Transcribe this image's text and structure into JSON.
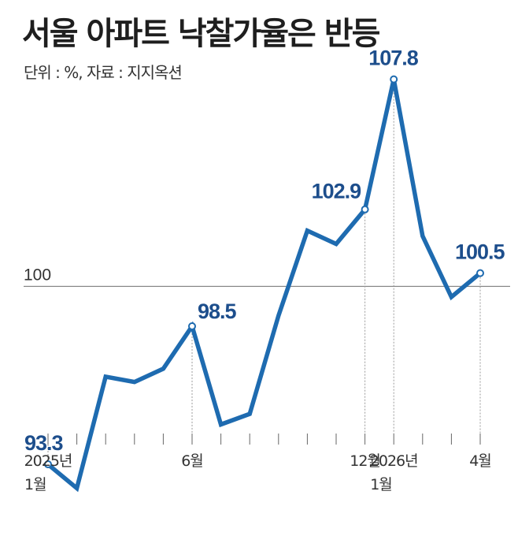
{
  "title": "서울 아파트 낙찰가율은 반등",
  "subtitle": "단위 : %, 자료 : 지지옥션",
  "colors": {
    "line": "#1e6bb0",
    "label": "#1d4e8c",
    "reference": "#888888",
    "text": "#333333"
  },
  "chart_data": {
    "type": "line",
    "months": [
      "2025-01",
      "2025-02",
      "2025-03",
      "2025-04",
      "2025-05",
      "2025-06",
      "2025-07",
      "2025-08",
      "2025-09",
      "2025-10",
      "2025-11",
      "2025-12",
      "2026-01",
      "2026-02",
      "2026-03",
      "2026-04"
    ],
    "values": [
      93.3,
      92.4,
      96.6,
      96.4,
      96.9,
      98.5,
      94.8,
      95.2,
      98.9,
      102.1,
      101.6,
      102.9,
      107.8,
      101.9,
      99.6,
      100.5
    ],
    "reference_line": {
      "value": 100,
      "label": "100"
    },
    "value_labels": [
      {
        "index": 0,
        "text": "93.3"
      },
      {
        "index": 5,
        "text": "98.5"
      },
      {
        "index": 11,
        "text": "102.9"
      },
      {
        "index": 12,
        "text": "107.8"
      },
      {
        "index": 15,
        "text": "100.5"
      }
    ],
    "tick_labels": [
      {
        "index": 0,
        "lines": [
          "2025년",
          "1월"
        ]
      },
      {
        "index": 5,
        "lines": [
          "6월"
        ]
      },
      {
        "index": 11,
        "lines": [
          "12월"
        ]
      },
      {
        "index": 12,
        "lines": [
          "2026년",
          "1월"
        ]
      },
      {
        "index": 15,
        "lines": [
          "4월"
        ]
      }
    ],
    "ylim": [
      90.6,
      109.6
    ],
    "grid": false
  }
}
